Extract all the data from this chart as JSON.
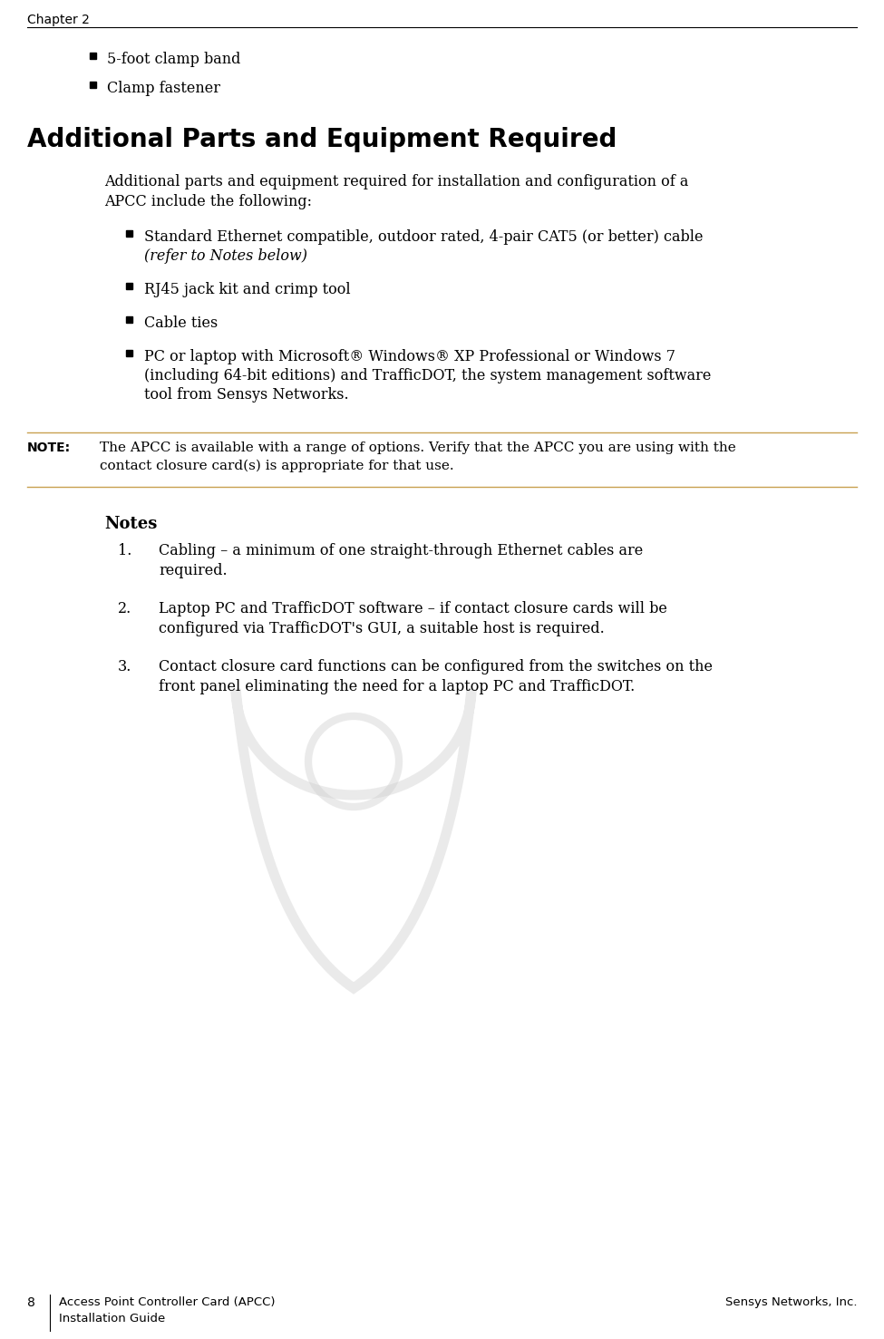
{
  "chapter_header": "Chapter 2",
  "bg_color": "#ffffff",
  "text_color": "#000000",
  "section_heading": "Additional Parts and Equipment Required",
  "heading_color": "#000000",
  "bullet_items_top": [
    "5-foot clamp band",
    "Clamp fastener"
  ],
  "intro_text_lines": [
    "Additional parts and equipment required for installation and configuration of a",
    "APCC include the following:"
  ],
  "bullet_items_main": [
    [
      "Standard Ethernet compatible, outdoor rated, 4-pair CAT5 (or better) cable",
      "(refer to Notes below)"
    ],
    [
      "RJ45 jack kit and crimp tool"
    ],
    [
      "Cable ties"
    ],
    [
      "PC or laptop with Microsoft® Windows® XP Professional or Windows 7",
      "(including 64-bit editions) and TrafficDOT, the system management software",
      "tool from Sensys Networks."
    ]
  ],
  "bullet_italic_lines": [
    "(refer to Notes below)"
  ],
  "note_label": "NOTE:",
  "note_text_lines": [
    "The APCC is available with a range of options. Verify that the APCC you are using with the",
    "contact closure card(s) is appropriate for that use."
  ],
  "notes_heading": "Notes",
  "numbered_items": [
    [
      "Cabling – a minimum of one straight-through Ethernet cables are",
      "required."
    ],
    [
      "Laptop PC and TrafficDOT software – if contact closure cards will be",
      "configured via TrafficDOT's GUI, a suitable host is required."
    ],
    [
      "Contact closure card functions can be configured from the switches on the",
      "front panel eliminating the need for a laptop PC and TrafficDOT."
    ]
  ],
  "footer_page_num": "8",
  "footer_left_line1": "Access Point Controller Card (APCC)",
  "footer_left_line2": "Installation Guide",
  "footer_right": "Sensys Networks, Inc.",
  "watermark_color": "#cccccc",
  "watermark_alpha": 0.4,
  "note_line_color": "#c8a050",
  "header_line_color": "#000000"
}
